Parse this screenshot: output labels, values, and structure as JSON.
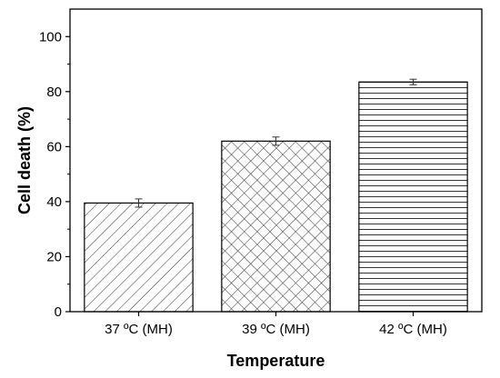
{
  "chart_data": {
    "type": "bar",
    "categories": [
      "37 ºC (MH)",
      "39 ºC (MH)",
      "42 ºC (MH)"
    ],
    "values": [
      39.5,
      62,
      83.5
    ],
    "errors": [
      1.5,
      1.5,
      1.0
    ],
    "patterns": [
      "diagonal-lines",
      "crosshatch",
      "horizontal-lines"
    ],
    "title": "",
    "xlabel": "Temperature",
    "ylabel": "Cell death (%)",
    "ylim": [
      0,
      110
    ],
    "yticks": [
      0,
      20,
      40,
      60,
      80,
      100
    ],
    "ytick_labels": [
      "0",
      "20",
      "40",
      "60",
      "80",
      "100"
    ],
    "grid": false,
    "legend": "none",
    "colors": {
      "bar_stroke": "#000000",
      "bar_fill": "#ffffff",
      "pattern": "#333333",
      "axis": "#000000"
    }
  }
}
